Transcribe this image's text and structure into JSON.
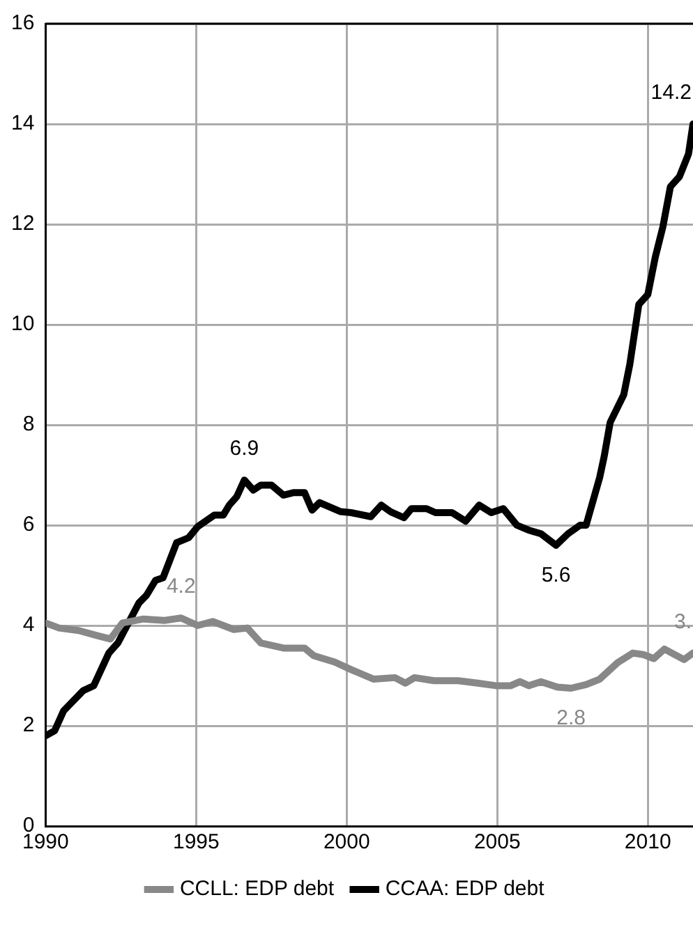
{
  "chart_data": {
    "type": "line",
    "xlim": [
      1990,
      2011.5
    ],
    "xticks": [
      1990,
      1995,
      2000,
      2005,
      2010
    ],
    "ylim": [
      0,
      16
    ],
    "yticks": [
      0,
      2,
      4,
      6,
      8,
      10,
      12,
      14,
      16
    ],
    "grid": true,
    "legend": "bottom",
    "marker": "none",
    "line_style": "solid",
    "series": [
      {
        "name": "CCLL: EDP debt",
        "color": "#888888",
        "x": [
          1990,
          1990.45,
          1991.1,
          1991.7,
          1992.15,
          1992.55,
          1993.25,
          1993.95,
          1994.5,
          1995.05,
          1995.55,
          1996.25,
          1996.7,
          1997.15,
          1997.9,
          1998.6,
          1998.9,
          1999.6,
          2000.15,
          2000.9,
          2001.6,
          2001.95,
          2002.25,
          2002.9,
          2003.7,
          2004.35,
          2004.95,
          2005.45,
          2005.75,
          2006.05,
          2006.45,
          2007.0,
          2007.45,
          2007.95,
          2008.4,
          2009.0,
          2009.5,
          2009.85,
          2010.2,
          2010.55,
          2011.2,
          2011.5
        ],
        "values": [
          4.05,
          3.95,
          3.9,
          3.8,
          3.73,
          4.05,
          4.13,
          4.1,
          4.15,
          4.0,
          4.08,
          3.92,
          3.95,
          3.65,
          3.55,
          3.55,
          3.4,
          3.27,
          3.12,
          2.93,
          2.96,
          2.85,
          2.96,
          2.9,
          2.9,
          2.85,
          2.8,
          2.8,
          2.88,
          2.8,
          2.88,
          2.77,
          2.75,
          2.82,
          2.93,
          3.26,
          3.45,
          3.42,
          3.34,
          3.53,
          3.32,
          3.45
        ]
      },
      {
        "name": "CCAA: EDP debt",
        "color": "#000000",
        "x": [
          1990,
          1990.3,
          1990.6,
          1991.25,
          1991.6,
          1992.1,
          1992.4,
          1993.1,
          1993.35,
          1993.65,
          1993.9,
          1994.35,
          1994.75,
          1995.05,
          1995.6,
          1995.9,
          1996.1,
          1996.35,
          1996.6,
          1996.9,
          1997.15,
          1997.5,
          1997.9,
          1998.25,
          1998.6,
          1998.85,
          1999.1,
          1999.8,
          2000.15,
          2000.8,
          2001.15,
          2001.45,
          2001.9,
          2002.15,
          2002.65,
          2002.95,
          2003.5,
          2003.95,
          2004.4,
          2004.8,
          2005.2,
          2005.65,
          2006.05,
          2006.45,
          2006.95,
          2007.35,
          2007.75,
          2007.95,
          2008.4,
          2008.55,
          2008.75,
          2009.2,
          2009.4,
          2009.7,
          2010.0,
          2010.25,
          2010.5,
          2010.75,
          2011.05,
          2011.35,
          2011.5
        ],
        "values": [
          1.8,
          1.9,
          2.3,
          2.7,
          2.8,
          3.45,
          3.65,
          4.45,
          4.6,
          4.9,
          4.95,
          5.65,
          5.75,
          5.97,
          6.2,
          6.2,
          6.4,
          6.57,
          6.9,
          6.7,
          6.8,
          6.8,
          6.6,
          6.65,
          6.65,
          6.3,
          6.45,
          6.27,
          6.25,
          6.17,
          6.4,
          6.27,
          6.15,
          6.33,
          6.33,
          6.25,
          6.25,
          6.08,
          6.4,
          6.25,
          6.33,
          6.0,
          5.9,
          5.83,
          5.6,
          5.83,
          6.0,
          6.0,
          6.95,
          7.37,
          8.05,
          8.6,
          9.2,
          10.4,
          10.6,
          11.35,
          11.95,
          12.75,
          12.95,
          13.4,
          14.0
        ]
      }
    ],
    "annotations": [
      {
        "text": "4.2",
        "x": 1994.5,
        "y": 4.15
      },
      {
        "text": "6.9",
        "x": 1996.6,
        "y": 6.9
      },
      {
        "text": "5.6",
        "x": 2006.95,
        "y": 5.6
      },
      {
        "text": "2.8",
        "x": 2007.45,
        "y": 2.75
      },
      {
        "text": "3.",
        "x": 2011.5,
        "y": 3.45
      },
      {
        "text": "14.2",
        "x": 2011.5,
        "y": 14.0
      }
    ]
  }
}
